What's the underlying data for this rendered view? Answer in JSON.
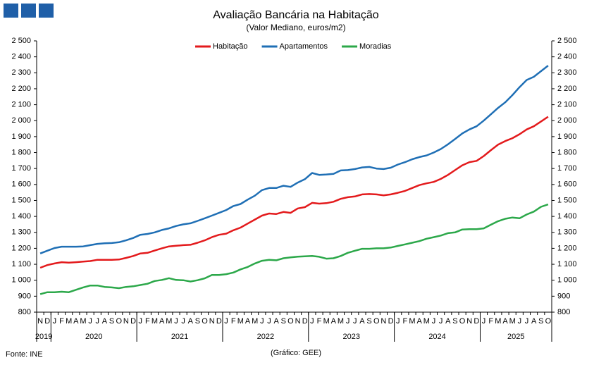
{
  "chart_data": {
    "type": "line",
    "title": "Avaliação Bancária na Habitação",
    "subtitle": "(Valor Mediano, euros/m2)",
    "source": "Fonte: INE",
    "credit": "(Gráfico: GEE)",
    "categories": [
      "N",
      "D",
      "J",
      "F",
      "M",
      "A",
      "M",
      "J",
      "J",
      "A",
      "S",
      "O",
      "N",
      "D",
      "J",
      "F",
      "M",
      "A",
      "M",
      "J",
      "J",
      "A",
      "S",
      "O",
      "N",
      "D",
      "J",
      "F",
      "M",
      "A",
      "M",
      "J",
      "J",
      "A",
      "S",
      "O",
      "N",
      "D",
      "J",
      "F",
      "M",
      "A",
      "M",
      "J",
      "J",
      "A",
      "S",
      "O",
      "N",
      "D",
      "J",
      "F",
      "M",
      "A",
      "M",
      "J",
      "J",
      "A",
      "S",
      "O",
      "N",
      "D",
      "J",
      "F",
      "M",
      "A",
      "M",
      "J",
      "J",
      "A",
      "S",
      "O"
    ],
    "years": [
      "2019",
      "2020",
      "2021",
      "2022",
      "2023",
      "2024",
      "2025"
    ],
    "series": [
      {
        "name": "Habitação",
        "color": "#e31a1c",
        "values": [
          1078,
          1095,
          1105,
          1113,
          1110,
          1113,
          1117,
          1120,
          1128,
          1128,
          1128,
          1130,
          1140,
          1152,
          1168,
          1172,
          1186,
          1200,
          1212,
          1216,
          1220,
          1222,
          1235,
          1250,
          1270,
          1285,
          1292,
          1313,
          1330,
          1355,
          1380,
          1405,
          1418,
          1415,
          1428,
          1422,
          1450,
          1458,
          1485,
          1480,
          1483,
          1492,
          1510,
          1520,
          1525,
          1538,
          1540,
          1538,
          1532,
          1538,
          1548,
          1560,
          1578,
          1596,
          1607,
          1616,
          1635,
          1660,
          1690,
          1720,
          1740,
          1748,
          1778,
          1815,
          1850,
          1872,
          1890,
          1915,
          1945,
          1965,
          1995,
          2025
        ]
      },
      {
        "name": "Apartamentos",
        "color": "#1f6fb5",
        "values": [
          1168,
          1185,
          1202,
          1210,
          1210,
          1210,
          1212,
          1220,
          1228,
          1232,
          1233,
          1238,
          1250,
          1265,
          1285,
          1290,
          1300,
          1315,
          1325,
          1340,
          1350,
          1357,
          1372,
          1388,
          1405,
          1422,
          1440,
          1465,
          1478,
          1505,
          1530,
          1565,
          1578,
          1578,
          1592,
          1585,
          1612,
          1633,
          1672,
          1660,
          1663,
          1667,
          1688,
          1690,
          1697,
          1707,
          1710,
          1700,
          1697,
          1705,
          1725,
          1740,
          1758,
          1772,
          1782,
          1800,
          1822,
          1852,
          1885,
          1920,
          1945,
          1965,
          2000,
          2040,
          2080,
          2115,
          2160,
          2210,
          2255,
          2275,
          2310,
          2345
        ]
      },
      {
        "name": "Moradias",
        "color": "#2ca84a",
        "values": [
          913,
          925,
          925,
          928,
          925,
          940,
          955,
          967,
          967,
          958,
          955,
          950,
          958,
          962,
          970,
          978,
          995,
          1002,
          1013,
          1002,
          1000,
          992,
          1000,
          1012,
          1033,
          1033,
          1038,
          1048,
          1068,
          1083,
          1105,
          1122,
          1128,
          1125,
          1138,
          1143,
          1148,
          1150,
          1152,
          1147,
          1135,
          1138,
          1152,
          1172,
          1185,
          1197,
          1197,
          1200,
          1200,
          1205,
          1215,
          1225,
          1235,
          1245,
          1260,
          1270,
          1280,
          1295,
          1300,
          1318,
          1320,
          1320,
          1325,
          1348,
          1370,
          1385,
          1393,
          1388,
          1412,
          1430,
          1460,
          1475
        ]
      }
    ],
    "ylim": [
      800,
      2500
    ],
    "yticks": [
      800,
      900,
      {
        "value": 1000,
        "label": "1 000"
      },
      {
        "value": 1100,
        "label": "1 100"
      },
      {
        "value": 1200,
        "label": "1 200"
      },
      {
        "value": 1300,
        "label": "1 300"
      },
      {
        "value": 1400,
        "label": "1 400"
      },
      {
        "value": 1500,
        "label": "1 500"
      },
      {
        "value": 1600,
        "label": "1 600"
      },
      {
        "value": 1700,
        "label": "1 700"
      },
      {
        "value": 1800,
        "label": "1 800"
      },
      {
        "value": 1900,
        "label": "1 900"
      },
      {
        "value": 2000,
        "label": "2 000"
      },
      {
        "value": 2100,
        "label": "2 100"
      },
      {
        "value": 2200,
        "label": "2 200"
      },
      {
        "value": 2300,
        "label": "2 300"
      },
      {
        "value": 2400,
        "label": "2 400"
      },
      {
        "value": 2500,
        "label": "2 500"
      }
    ],
    "y2lim": [
      800,
      2500
    ],
    "y2ticks": [
      800,
      900,
      {
        "value": 1000,
        "label": "1 000"
      },
      {
        "value": 1100,
        "label": "1 100"
      },
      {
        "value": 1200,
        "label": "1 200"
      },
      {
        "value": 1300,
        "label": "1 300"
      },
      {
        "value": 1400,
        "label": "1 400"
      },
      {
        "value": 1500,
        "label": "1 500"
      },
      {
        "value": 1600,
        "label": "1 600"
      },
      {
        "value": 1700,
        "label": "1 700"
      },
      {
        "value": 1800,
        "label": "1 800"
      },
      {
        "value": 1900,
        "label": "1 900"
      },
      {
        "value": 2000,
        "label": "2 000"
      },
      {
        "value": 2100,
        "label": "2 100"
      },
      {
        "value": 2200,
        "label": "2 200"
      },
      {
        "value": 2300,
        "label": "2 300"
      },
      {
        "value": 2400,
        "label": "2 400"
      },
      {
        "value": 2500,
        "label": "2 500"
      }
    ],
    "grid": false,
    "legend": "top"
  }
}
